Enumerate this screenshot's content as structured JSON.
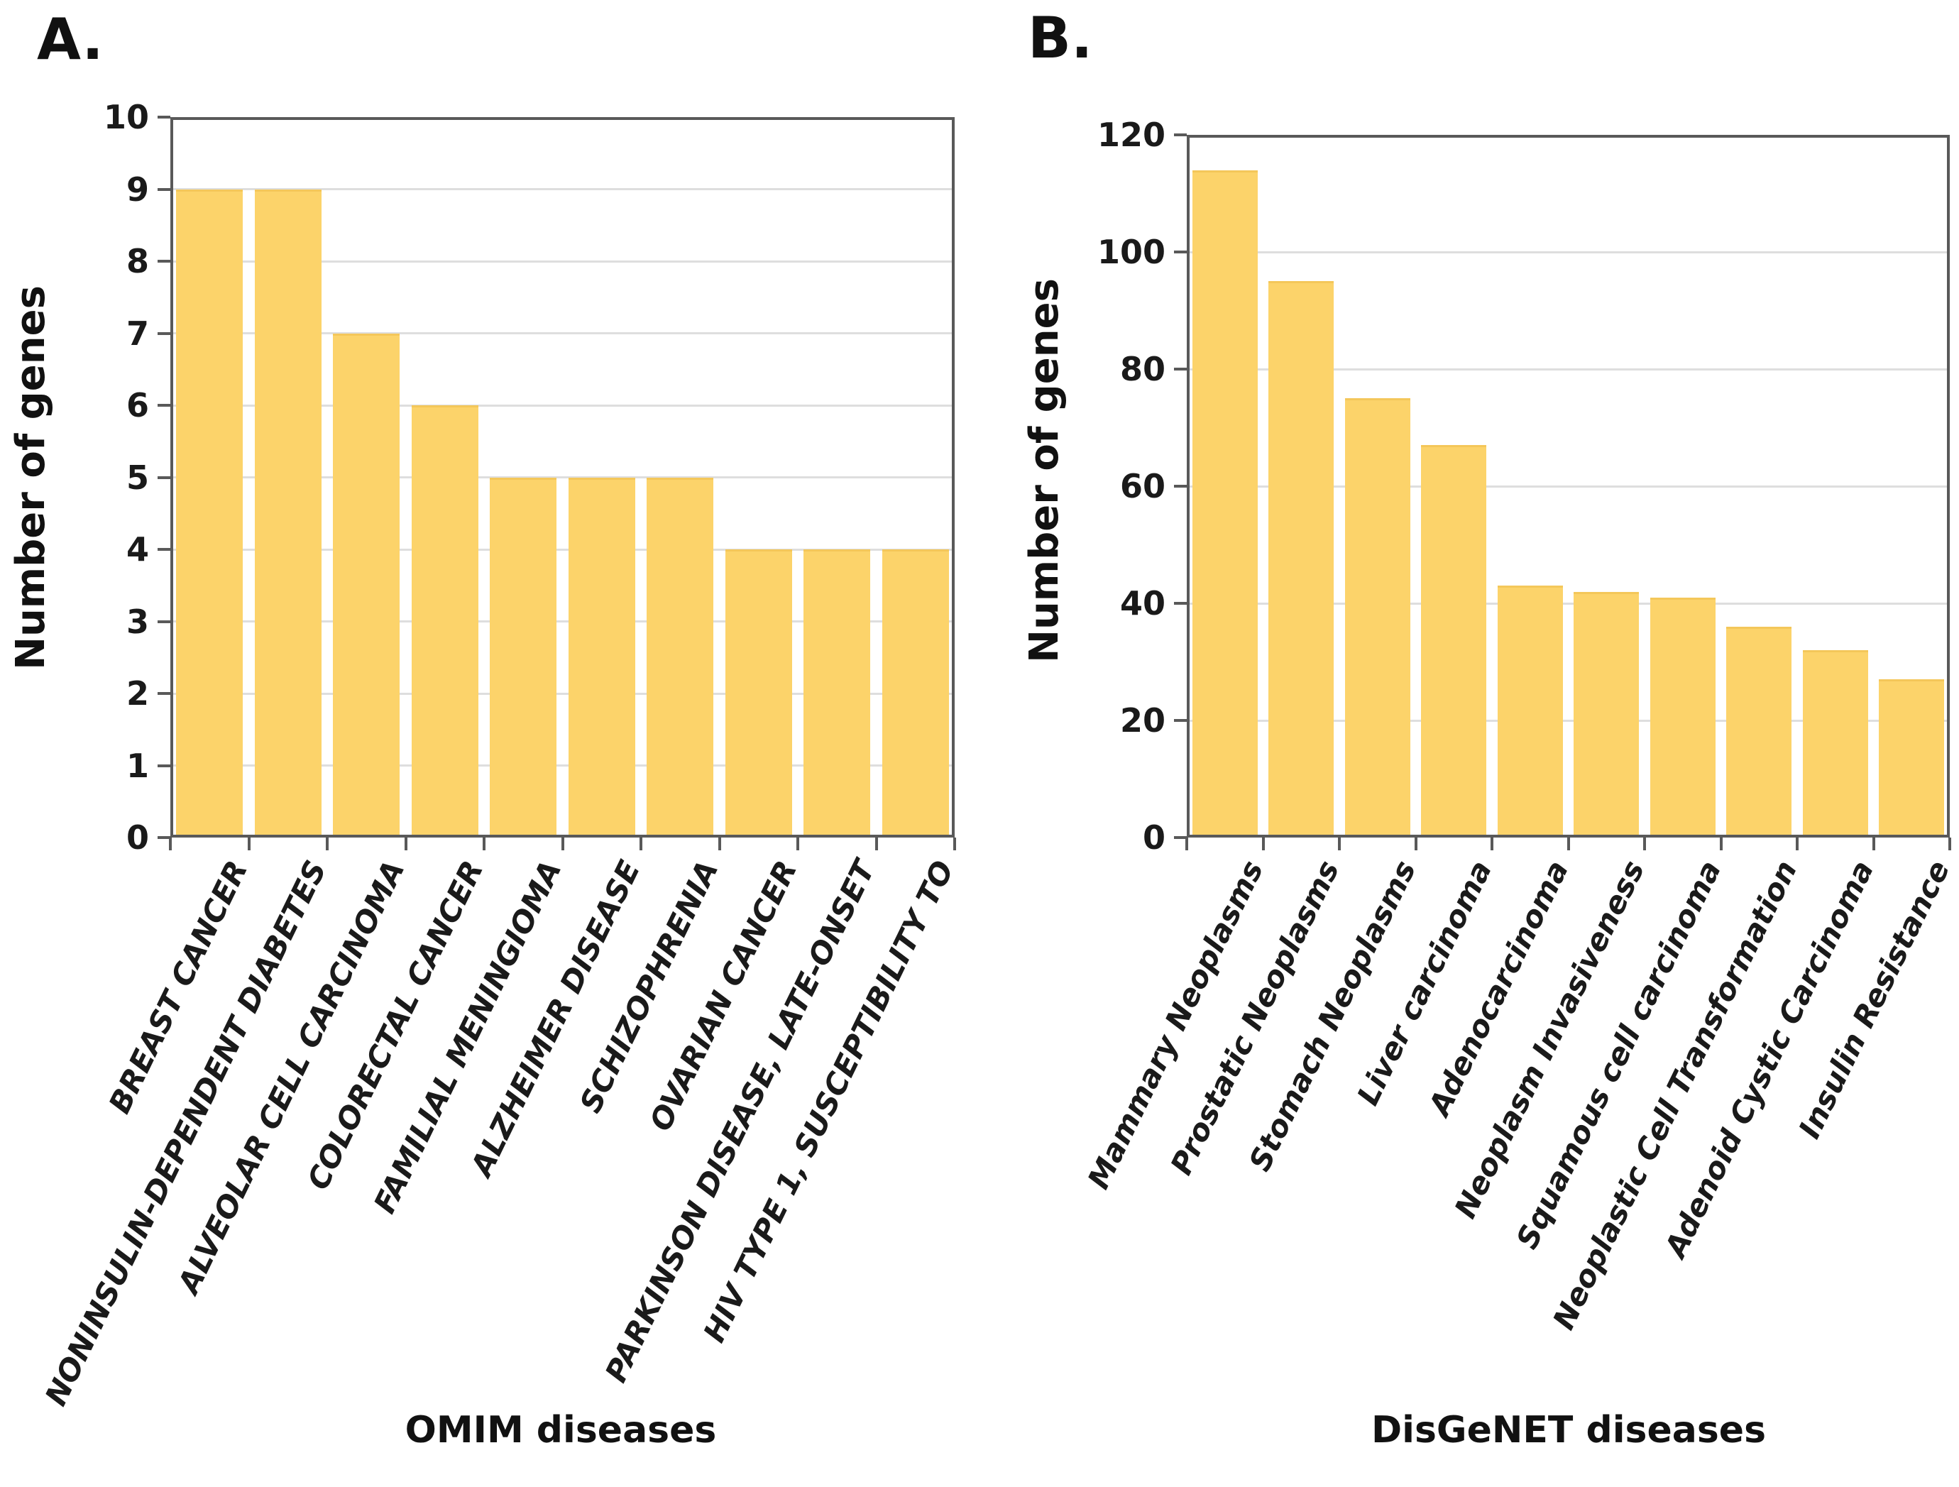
{
  "colors": {
    "bar_fill": "#FCD36A",
    "bar_edge": "#F4C75A",
    "axis": "#595959",
    "gridline": "#DEDEDE",
    "text": "#1A1A1A"
  },
  "chart_data": [
    {
      "type": "bar",
      "panel_label": "A.",
      "title": "",
      "xlabel": "OMIM diseases",
      "ylabel": "Number of genes",
      "ylim": [
        0,
        10
      ],
      "ytick_step": 1,
      "grid": true,
      "legend": "none",
      "categories": [
        "BREAST CANCER",
        "NONINSULIN-DEPENDENT DIABETES",
        "ALVEOLAR CELL CARCINOMA",
        "COLORECTAL CANCER",
        "FAMILIAL MENINGIOMA",
        "ALZHEIMER DISEASE",
        "SCHIZOPHRENIA",
        "OVARIAN CANCER",
        "PARKINSON DISEASE, LATE-ONSET",
        "HIV TYPE 1, SUSCEPTIBILITY TO"
      ],
      "values": [
        9,
        9,
        7,
        6,
        5,
        5,
        5,
        4,
        4,
        4
      ],
      "yticklabels": [
        "0",
        "1",
        "2",
        "3",
        "4",
        "5",
        "6",
        "7",
        "8",
        "9",
        "10"
      ]
    },
    {
      "type": "bar",
      "panel_label": "B.",
      "title": "",
      "xlabel": "DisGeNET diseases",
      "ylabel": "Number of genes",
      "ylim": [
        0,
        120
      ],
      "ytick_step": 20,
      "grid": true,
      "legend": "none",
      "categories": [
        "Mammary Neoplasms",
        "Prostatic Neoplasms",
        "Stomach Neoplasms",
        "Liver carcinoma",
        "Adenocarcinoma",
        "Neoplasm Invasiveness",
        "Squamous cell carcinoma",
        "Neoplastic Cell Transformation",
        "Adenoid Cystic Carcinoma",
        "Insulin Resistance"
      ],
      "values": [
        114,
        95,
        75,
        67,
        43,
        42,
        41,
        36,
        32,
        27
      ],
      "yticklabels": [
        "0",
        "20",
        "40",
        "60",
        "80",
        "100",
        "120"
      ]
    }
  ]
}
